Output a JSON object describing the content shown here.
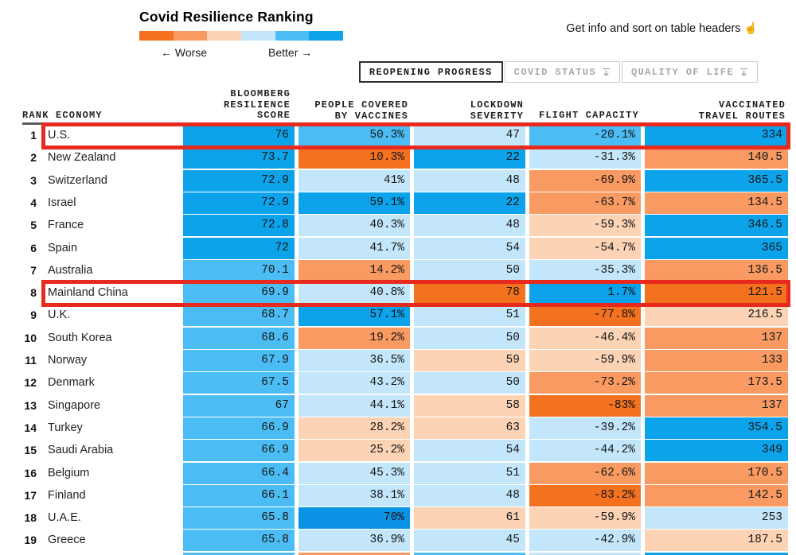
{
  "header": {
    "title": "Covid Resilience Ranking",
    "legend": {
      "worse_label": "← Worse",
      "better_label": "Better →",
      "colors": [
        "#f4711f",
        "#f89a62",
        "#fcd3b5",
        "#c3e6fb",
        "#4cbdf4",
        "#0ca3eb"
      ]
    },
    "hint": {
      "text": "Get info and sort on table headers",
      "icon": "☝"
    }
  },
  "tabs": [
    {
      "label": "REOPENING PROGRESS",
      "active": true
    },
    {
      "label": "COVID STATUS",
      "active": false
    },
    {
      "label": "QUALITY OF LIFE",
      "active": false
    }
  ],
  "annotations": {
    "highlight_color": "#e8291d",
    "highlighted_economies": [
      "U.S.",
      "Mainland China"
    ]
  },
  "chart_data": {
    "type": "table",
    "title": "Covid Resilience Ranking",
    "active_view": "REOPENING PROGRESS",
    "columns": [
      "RANK ECONOMY",
      "BLOOMBERG\nRESILIENCE\nSCORE",
      "PEOPLE COVERED\nBY VACCINES",
      "LOCKDOWN\nSEVERITY",
      "FLIGHT CAPACITY",
      "VACCINATED\nTRAVEL ROUTES"
    ],
    "palette": {
      "o3": "#f4711f",
      "o2": "#f89a62",
      "o1": "#fcd3b5",
      "b1": "#c3e6fb",
      "b2": "#4cbdf4",
      "b3": "#0ca3eb",
      "b4": "#0a93e4"
    },
    "rows": [
      {
        "rank": "1",
        "economy": "U.S.",
        "highlighted": true,
        "values": [
          "76",
          "50.3%",
          "47",
          "-20.1%",
          "334"
        ],
        "colors": [
          "b3",
          "b2",
          "b1",
          "b2",
          "b3"
        ]
      },
      {
        "rank": "2",
        "economy": "New Zealand",
        "highlighted": false,
        "values": [
          "73.7",
          "10.3%",
          "22",
          "-31.3%",
          "140.5"
        ],
        "colors": [
          "b3",
          "o3",
          "b3",
          "b1",
          "o2"
        ]
      },
      {
        "rank": "3",
        "economy": "Switzerland",
        "highlighted": false,
        "values": [
          "72.9",
          "41%",
          "48",
          "-69.9%",
          "365.5"
        ],
        "colors": [
          "b3",
          "b1",
          "b1",
          "o2",
          "b3"
        ]
      },
      {
        "rank": "4",
        "economy": "Israel",
        "highlighted": false,
        "values": [
          "72.9",
          "59.1%",
          "22",
          "-63.7%",
          "134.5"
        ],
        "colors": [
          "b3",
          "b3",
          "b3",
          "o2",
          "o2"
        ]
      },
      {
        "rank": "5",
        "economy": "France",
        "highlighted": false,
        "values": [
          "72.8",
          "40.3%",
          "48",
          "-59.3%",
          "346.5"
        ],
        "colors": [
          "b3",
          "b1",
          "b1",
          "o1",
          "b3"
        ]
      },
      {
        "rank": "6",
        "economy": "Spain",
        "highlighted": false,
        "values": [
          "72",
          "41.7%",
          "54",
          "-54.7%",
          "365"
        ],
        "colors": [
          "b3",
          "b1",
          "b1",
          "o1",
          "b3"
        ]
      },
      {
        "rank": "7",
        "economy": "Australia",
        "highlighted": false,
        "values": [
          "70.1",
          "14.2%",
          "50",
          "-35.3%",
          "136.5"
        ],
        "colors": [
          "b2",
          "o2",
          "b1",
          "b1",
          "o2"
        ]
      },
      {
        "rank": "8",
        "economy": "Mainland China",
        "highlighted": true,
        "values": [
          "69.9",
          "40.8%",
          "78",
          "1.7%",
          "121.5"
        ],
        "colors": [
          "b2",
          "b1",
          "o3",
          "b3",
          "o3"
        ]
      },
      {
        "rank": "9",
        "economy": "U.K.",
        "highlighted": false,
        "values": [
          "68.7",
          "57.1%",
          "51",
          "-77.8%",
          "216.5"
        ],
        "colors": [
          "b2",
          "b3",
          "b1",
          "o3",
          "o1"
        ]
      },
      {
        "rank": "10",
        "economy": "South Korea",
        "highlighted": false,
        "values": [
          "68.6",
          "19.2%",
          "50",
          "-46.4%",
          "137"
        ],
        "colors": [
          "b2",
          "o2",
          "b1",
          "o1",
          "o2"
        ]
      },
      {
        "rank": "11",
        "economy": "Norway",
        "highlighted": false,
        "values": [
          "67.9",
          "36.5%",
          "59",
          "-59.9%",
          "133"
        ],
        "colors": [
          "b2",
          "b1",
          "o1",
          "o1",
          "o2"
        ]
      },
      {
        "rank": "12",
        "economy": "Denmark",
        "highlighted": false,
        "values": [
          "67.5",
          "43.2%",
          "50",
          "-73.2%",
          "173.5"
        ],
        "colors": [
          "b2",
          "b1",
          "b1",
          "o2",
          "o2"
        ]
      },
      {
        "rank": "13",
        "economy": "Singapore",
        "highlighted": false,
        "values": [
          "67",
          "44.1%",
          "58",
          "-83%",
          "137"
        ],
        "colors": [
          "b2",
          "b1",
          "o1",
          "o3",
          "o2"
        ]
      },
      {
        "rank": "14",
        "economy": "Turkey",
        "highlighted": false,
        "values": [
          "66.9",
          "28.2%",
          "63",
          "-39.2%",
          "354.5"
        ],
        "colors": [
          "b2",
          "o1",
          "o1",
          "b1",
          "b3"
        ]
      },
      {
        "rank": "15",
        "economy": "Saudi Arabia",
        "highlighted": false,
        "values": [
          "66.9",
          "25.2%",
          "54",
          "-44.2%",
          "349"
        ],
        "colors": [
          "b2",
          "o1",
          "b1",
          "b1",
          "b3"
        ]
      },
      {
        "rank": "16",
        "economy": "Belgium",
        "highlighted": false,
        "values": [
          "66.4",
          "45.3%",
          "51",
          "-62.6%",
          "170.5"
        ],
        "colors": [
          "b2",
          "b1",
          "b1",
          "o2",
          "o2"
        ]
      },
      {
        "rank": "17",
        "economy": "Finland",
        "highlighted": false,
        "values": [
          "66.1",
          "38.1%",
          "48",
          "-83.2%",
          "142.5"
        ],
        "colors": [
          "b2",
          "b1",
          "b1",
          "o3",
          "o2"
        ]
      },
      {
        "rank": "18",
        "economy": "U.A.E.",
        "highlighted": false,
        "values": [
          "65.8",
          "70%",
          "61",
          "-59.9%",
          "253"
        ],
        "colors": [
          "b2",
          "b4",
          "o1",
          "o1",
          "b1"
        ]
      },
      {
        "rank": "19",
        "economy": "Greece",
        "highlighted": false,
        "values": [
          "65.8",
          "36.9%",
          "45",
          "-42.9%",
          "187.5"
        ],
        "colors": [
          "b2",
          "b1",
          "b1",
          "b1",
          "o1"
        ]
      }
    ],
    "partial_row": {
      "colors": [
        "b2",
        "o2",
        "b2",
        "b1",
        "b3"
      ]
    }
  }
}
